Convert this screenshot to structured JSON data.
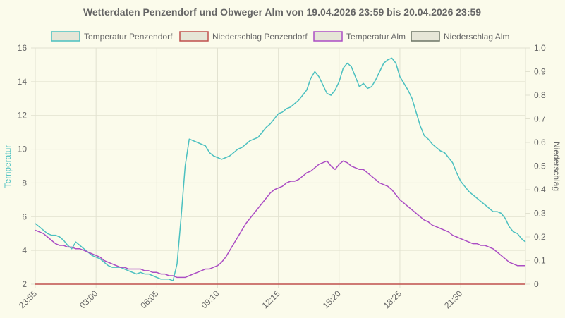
{
  "chart_data": {
    "type": "line",
    "title": "Wetterdaten Penzendorf und Obweger Alm von 19.04.2026 23:59 bis 20.04.2026 23:59",
    "xlabel": "",
    "ylabel": "Temperatur",
    "y2label": "Niederschlag",
    "ylim": [
      2,
      16
    ],
    "y2lim": [
      0,
      1.0
    ],
    "yticks": [
      "2",
      "4",
      "6",
      "8",
      "10",
      "12",
      "14",
      "16"
    ],
    "y2ticks": [
      "0",
      "0.1",
      "0.2",
      "0.3",
      "0.4",
      "0.5",
      "0.6",
      "0.7",
      "0.8",
      "0.9",
      "1.0"
    ],
    "xticks": [
      "23:55",
      "03:00",
      "06:05",
      "09:10",
      "12:15",
      "15:20",
      "18:25",
      "21:30"
    ],
    "legend_position": "top",
    "grid": true,
    "series": [
      {
        "name": "Temperatur Penzendorf",
        "color": "#4bc0c0",
        "axis": "left",
        "values": [
          5.6,
          5.4,
          5.2,
          5.0,
          4.9,
          4.9,
          4.8,
          4.6,
          4.3,
          4.1,
          4.5,
          4.3,
          4.1,
          3.9,
          3.7,
          3.6,
          3.5,
          3.3,
          3.1,
          3.0,
          3.0,
          3.0,
          2.9,
          2.8,
          2.7,
          2.6,
          2.7,
          2.6,
          2.6,
          2.5,
          2.4,
          2.3,
          2.3,
          2.3,
          2.2,
          3.2,
          6.0,
          9.0,
          10.6,
          10.5,
          10.4,
          10.3,
          10.2,
          9.8,
          9.6,
          9.5,
          9.4,
          9.5,
          9.6,
          9.8,
          10.0,
          10.1,
          10.3,
          10.5,
          10.6,
          10.7,
          11.0,
          11.3,
          11.5,
          11.8,
          12.1,
          12.2,
          12.4,
          12.5,
          12.7,
          12.9,
          13.2,
          13.5,
          14.2,
          14.6,
          14.3,
          13.8,
          13.3,
          13.2,
          13.5,
          14.0,
          14.8,
          15.1,
          14.9,
          14.3,
          13.7,
          13.9,
          13.6,
          13.7,
          14.1,
          14.6,
          15.1,
          15.3,
          15.4,
          15.1,
          14.3,
          13.9,
          13.5,
          13.0,
          12.2,
          11.4,
          10.8,
          10.6,
          10.3,
          10.1,
          9.9,
          9.8,
          9.5,
          9.2,
          8.6,
          8.1,
          7.8,
          7.5,
          7.3,
          7.1,
          6.9,
          6.7,
          6.5,
          6.3,
          6.3,
          6.2,
          5.9,
          5.4,
          5.1,
          5.0,
          4.7,
          4.5
        ]
      },
      {
        "name": "Niederschlag Penzendorf",
        "color": "#c0504d",
        "axis": "right",
        "values": [
          0,
          0,
          0,
          0,
          0,
          0,
          0,
          0,
          0,
          0,
          0,
          0,
          0,
          0,
          0,
          0,
          0,
          0,
          0,
          0,
          0,
          0,
          0,
          0,
          0,
          0,
          0,
          0,
          0,
          0,
          0,
          0,
          0,
          0,
          0,
          0,
          0,
          0,
          0,
          0,
          0,
          0,
          0,
          0,
          0,
          0,
          0,
          0,
          0,
          0,
          0,
          0,
          0,
          0,
          0,
          0,
          0,
          0,
          0,
          0,
          0,
          0,
          0,
          0,
          0,
          0,
          0,
          0,
          0,
          0,
          0,
          0,
          0,
          0,
          0,
          0,
          0,
          0,
          0,
          0,
          0,
          0,
          0,
          0,
          0,
          0,
          0,
          0,
          0,
          0,
          0,
          0,
          0,
          0,
          0,
          0,
          0,
          0,
          0,
          0,
          0,
          0,
          0,
          0,
          0,
          0,
          0,
          0,
          0,
          0,
          0,
          0,
          0,
          0,
          0,
          0,
          0,
          0,
          0,
          0,
          0,
          0
        ]
      },
      {
        "name": "Temperatur Alm",
        "color": "#ab4dc4",
        "axis": "left",
        "values": [
          5.2,
          5.1,
          5.0,
          4.8,
          4.6,
          4.4,
          4.3,
          4.3,
          4.2,
          4.2,
          4.1,
          4.1,
          4.0,
          3.9,
          3.8,
          3.7,
          3.6,
          3.4,
          3.3,
          3.2,
          3.1,
          3.0,
          3.0,
          2.9,
          2.9,
          2.9,
          2.9,
          2.8,
          2.8,
          2.7,
          2.7,
          2.6,
          2.6,
          2.5,
          2.5,
          2.4,
          2.4,
          2.4,
          2.5,
          2.6,
          2.7,
          2.8,
          2.9,
          2.9,
          3.0,
          3.1,
          3.3,
          3.6,
          4.0,
          4.4,
          4.8,
          5.2,
          5.6,
          5.9,
          6.2,
          6.5,
          6.8,
          7.1,
          7.4,
          7.6,
          7.7,
          7.8,
          8.0,
          8.1,
          8.1,
          8.2,
          8.4,
          8.6,
          8.7,
          8.9,
          9.1,
          9.2,
          9.3,
          9.0,
          8.8,
          9.1,
          9.3,
          9.2,
          9.0,
          8.9,
          8.8,
          8.8,
          8.6,
          8.4,
          8.2,
          8.0,
          7.9,
          7.8,
          7.6,
          7.3,
          7.0,
          6.8,
          6.6,
          6.4,
          6.2,
          6.0,
          5.8,
          5.7,
          5.5,
          5.4,
          5.3,
          5.2,
          5.1,
          4.9,
          4.8,
          4.7,
          4.6,
          4.5,
          4.4,
          4.4,
          4.3,
          4.3,
          4.2,
          4.1,
          3.9,
          3.7,
          3.5,
          3.3,
          3.2,
          3.1,
          3.1,
          3.1
        ]
      },
      {
        "name": "Niederschlag Alm",
        "color": "#6c7566",
        "axis": "right",
        "values": []
      }
    ]
  }
}
